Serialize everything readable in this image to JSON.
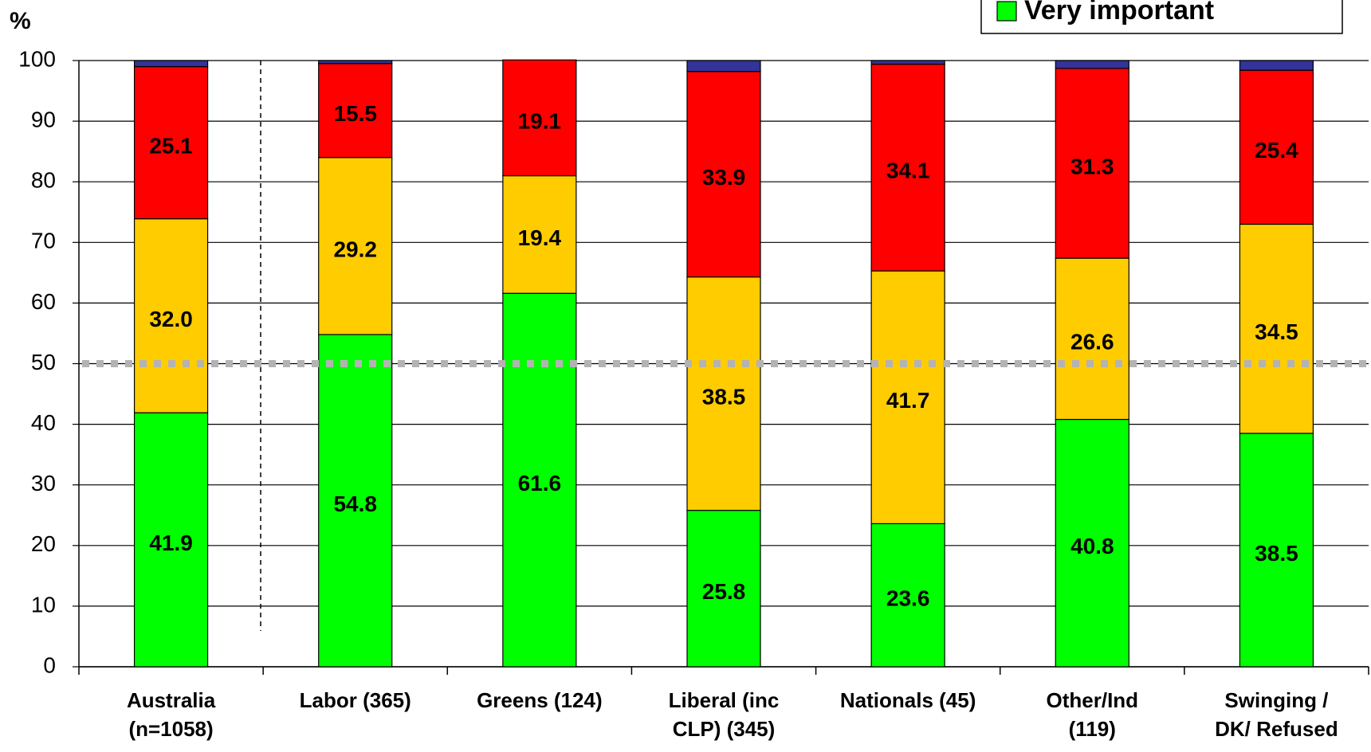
{
  "chart_data": {
    "type": "stacked_bar",
    "y_label": "%",
    "categories": [
      [
        "Australia",
        "(n=1058)"
      ],
      [
        "Labor (365)"
      ],
      [
        "Greens (124)"
      ],
      [
        "Liberal (inc",
        "CLP) (345)"
      ],
      [
        "Nationals (45)"
      ],
      [
        "Other/Ind",
        "(119)"
      ],
      [
        "Swinging /",
        "DK/ Refused"
      ]
    ],
    "series": [
      {
        "name": "Very important",
        "color": "#00ff00",
        "values": [
          41.9,
          54.8,
          61.6,
          25.8,
          23.6,
          40.8,
          38.5
        ],
        "value_labels": [
          "41.9",
          "54.8",
          "61.6",
          "25.8",
          "23.6",
          "40.8",
          "38.5"
        ]
      },
      {
        "color": "#ffcc00",
        "values": [
          32.0,
          29.2,
          19.4,
          38.5,
          41.7,
          26.6,
          34.5
        ],
        "value_labels": [
          "32.0",
          "29.2",
          "19.4",
          "38.5",
          "41.7",
          "26.6",
          "34.5"
        ]
      },
      {
        "color": "#ff0000",
        "values": [
          25.1,
          15.5,
          19.1,
          33.9,
          34.1,
          31.3,
          25.4
        ],
        "value_labels": [
          "25.1",
          "15.5",
          "19.1",
          "33.9",
          "34.1",
          "31.3",
          "25.4"
        ]
      },
      {
        "color": "#333399",
        "values": [
          1.0,
          0.5,
          0,
          1.8,
          0.6,
          1.3,
          1.6
        ]
      }
    ],
    "ylim": [
      0,
      100
    ],
    "yticks": [
      0,
      10,
      20,
      30,
      40,
      50,
      60,
      70,
      80,
      90,
      100
    ],
    "grid": true,
    "reference_line": 50,
    "legend": "top-right"
  }
}
